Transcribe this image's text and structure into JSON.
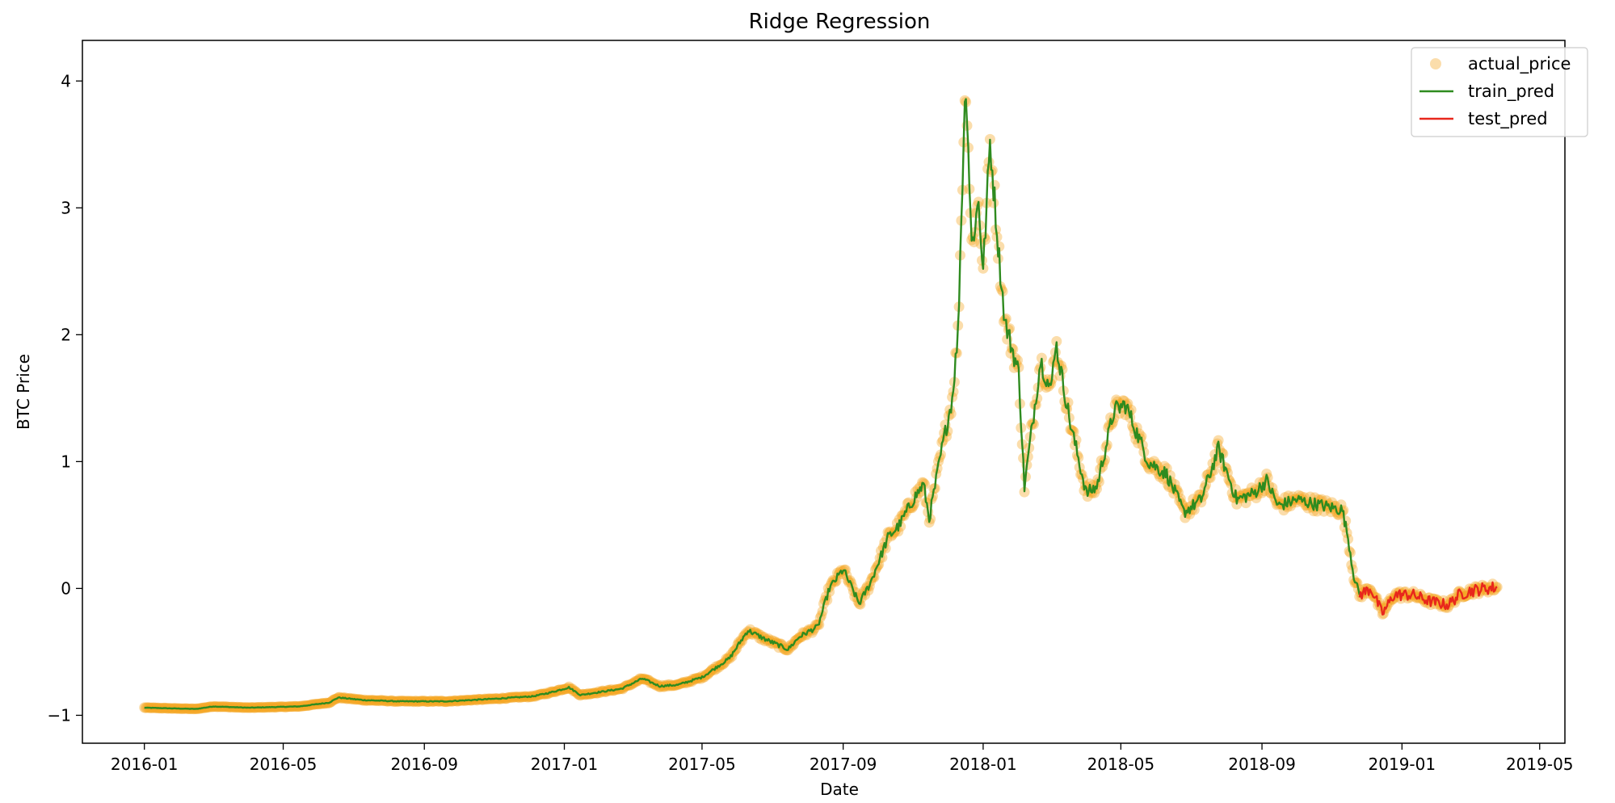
{
  "chart_data": {
    "type": "line",
    "title": "Ridge Regression",
    "xlabel": "Date",
    "ylabel": "BTC Price",
    "x_ticks": [
      "2016-01",
      "2016-05",
      "2016-09",
      "2017-01",
      "2017-05",
      "2017-09",
      "2018-01",
      "2018-05",
      "2018-09",
      "2019-01",
      "2019-05"
    ],
    "y_ticks": [
      -1,
      0,
      1,
      2,
      3,
      4
    ],
    "y_tick_labels": [
      "−1",
      "0",
      "1",
      "2",
      "3",
      "4"
    ],
    "xlim": [
      "2015-11-08",
      "2019-05-23"
    ],
    "ylim": [
      -1.22,
      4.32
    ],
    "grid": false,
    "legend_position": "top-right",
    "colors": {
      "actual_price": "#f5a623",
      "train_pred": "#2e8b1f",
      "test_pred": "#e8271c"
    },
    "series": [
      {
        "name": "actual_price",
        "kind": "scatter",
        "anchors": [
          [
            "2016-01-01",
            -0.94
          ],
          [
            "2016-02-15",
            -0.95
          ],
          [
            "2016-03-01",
            -0.93
          ],
          [
            "2016-04-01",
            -0.94
          ],
          [
            "2016-05-15",
            -0.93
          ],
          [
            "2016-06-10",
            -0.9
          ],
          [
            "2016-06-18",
            -0.86
          ],
          [
            "2016-07-10",
            -0.88
          ],
          [
            "2016-08-10",
            -0.89
          ],
          [
            "2016-09-20",
            -0.89
          ],
          [
            "2016-11-01",
            -0.87
          ],
          [
            "2016-12-05",
            -0.85
          ],
          [
            "2016-12-20",
            -0.82
          ],
          [
            "2017-01-05",
            -0.78
          ],
          [
            "2017-01-15",
            -0.84
          ],
          [
            "2017-02-20",
            -0.79
          ],
          [
            "2017-03-10",
            -0.71
          ],
          [
            "2017-03-25",
            -0.77
          ],
          [
            "2017-04-10",
            -0.76
          ],
          [
            "2017-05-01",
            -0.7
          ],
          [
            "2017-05-25",
            -0.55
          ],
          [
            "2017-06-10",
            -0.33
          ],
          [
            "2017-06-25",
            -0.4
          ],
          [
            "2017-07-15",
            -0.48
          ],
          [
            "2017-07-25",
            -0.38
          ],
          [
            "2017-08-10",
            -0.3
          ],
          [
            "2017-08-20",
            0.0
          ],
          [
            "2017-09-01",
            0.15
          ],
          [
            "2017-09-15",
            -0.12
          ],
          [
            "2017-09-25",
            0.05
          ],
          [
            "2017-10-10",
            0.4
          ],
          [
            "2017-10-20",
            0.5
          ],
          [
            "2017-11-01",
            0.7
          ],
          [
            "2017-11-10",
            0.82
          ],
          [
            "2017-11-15",
            0.55
          ],
          [
            "2017-11-25",
            1.05
          ],
          [
            "2017-12-05",
            1.5
          ],
          [
            "2017-12-10",
            2.0
          ],
          [
            "2017-12-15",
            3.55
          ],
          [
            "2017-12-17",
            4.0
          ],
          [
            "2017-12-22",
            2.7
          ],
          [
            "2017-12-28",
            3.05
          ],
          [
            "2018-01-01",
            2.5
          ],
          [
            "2018-01-07",
            3.52
          ],
          [
            "2018-01-15",
            2.6
          ],
          [
            "2018-01-20",
            2.1
          ],
          [
            "2018-02-01",
            1.7
          ],
          [
            "2018-02-06",
            0.8
          ],
          [
            "2018-02-20",
            1.8
          ],
          [
            "2018-03-01",
            1.55
          ],
          [
            "2018-03-05",
            1.95
          ],
          [
            "2018-03-18",
            1.3
          ],
          [
            "2018-04-01",
            0.75
          ],
          [
            "2018-04-10",
            0.8
          ],
          [
            "2018-04-25",
            1.4
          ],
          [
            "2018-05-05",
            1.45
          ],
          [
            "2018-05-25",
            1.0
          ],
          [
            "2018-06-10",
            0.9
          ],
          [
            "2018-06-25",
            0.6
          ],
          [
            "2018-07-10",
            0.7
          ],
          [
            "2018-07-25",
            1.1
          ],
          [
            "2018-08-10",
            0.7
          ],
          [
            "2018-08-25",
            0.75
          ],
          [
            "2018-09-05",
            0.85
          ],
          [
            "2018-09-15",
            0.65
          ],
          [
            "2018-10-01",
            0.7
          ],
          [
            "2018-10-20",
            0.66
          ],
          [
            "2018-11-10",
            0.62
          ],
          [
            "2018-11-15",
            0.4
          ],
          [
            "2018-11-20",
            0.1
          ],
          [
            "2018-11-25",
            -0.05
          ],
          [
            "2018-12-05",
            0.0
          ],
          [
            "2018-12-15",
            -0.2
          ],
          [
            "2018-12-25",
            -0.05
          ],
          [
            "2019-01-10",
            -0.05
          ],
          [
            "2019-01-25",
            -0.1
          ],
          [
            "2019-02-10",
            -0.13
          ],
          [
            "2019-02-20",
            -0.05
          ],
          [
            "2019-03-01",
            -0.02
          ],
          [
            "2019-03-15",
            0.0
          ],
          [
            "2019-03-25",
            0.01
          ]
        ]
      },
      {
        "name": "train_pred",
        "kind": "line",
        "anchors": [
          [
            "2016-01-01",
            -0.94
          ],
          [
            "2016-02-15",
            -0.95
          ],
          [
            "2016-03-01",
            -0.93
          ],
          [
            "2016-04-01",
            -0.94
          ],
          [
            "2016-05-15",
            -0.93
          ],
          [
            "2016-06-10",
            -0.9
          ],
          [
            "2016-06-18",
            -0.86
          ],
          [
            "2016-07-10",
            -0.88
          ],
          [
            "2016-08-10",
            -0.89
          ],
          [
            "2016-09-20",
            -0.89
          ],
          [
            "2016-11-01",
            -0.87
          ],
          [
            "2016-12-05",
            -0.85
          ],
          [
            "2016-12-20",
            -0.82
          ],
          [
            "2017-01-05",
            -0.78
          ],
          [
            "2017-01-15",
            -0.84
          ],
          [
            "2017-02-20",
            -0.79
          ],
          [
            "2017-03-10",
            -0.71
          ],
          [
            "2017-03-25",
            -0.77
          ],
          [
            "2017-04-10",
            -0.76
          ],
          [
            "2017-05-01",
            -0.7
          ],
          [
            "2017-05-25",
            -0.55
          ],
          [
            "2017-06-10",
            -0.33
          ],
          [
            "2017-06-25",
            -0.4
          ],
          [
            "2017-07-15",
            -0.48
          ],
          [
            "2017-07-25",
            -0.38
          ],
          [
            "2017-08-10",
            -0.3
          ],
          [
            "2017-08-20",
            0.0
          ],
          [
            "2017-09-01",
            0.15
          ],
          [
            "2017-09-15",
            -0.12
          ],
          [
            "2017-09-25",
            0.05
          ],
          [
            "2017-10-10",
            0.4
          ],
          [
            "2017-10-20",
            0.5
          ],
          [
            "2017-11-01",
            0.7
          ],
          [
            "2017-11-10",
            0.82
          ],
          [
            "2017-11-15",
            0.55
          ],
          [
            "2017-11-25",
            1.05
          ],
          [
            "2017-12-05",
            1.5
          ],
          [
            "2017-12-10",
            2.0
          ],
          [
            "2017-12-15",
            3.55
          ],
          [
            "2017-12-17",
            4.0
          ],
          [
            "2017-12-22",
            2.7
          ],
          [
            "2017-12-28",
            3.05
          ],
          [
            "2018-01-01",
            2.5
          ],
          [
            "2018-01-07",
            3.52
          ],
          [
            "2018-01-15",
            2.6
          ],
          [
            "2018-01-20",
            2.1
          ],
          [
            "2018-02-01",
            1.7
          ],
          [
            "2018-02-06",
            0.8
          ],
          [
            "2018-02-20",
            1.8
          ],
          [
            "2018-03-01",
            1.55
          ],
          [
            "2018-03-05",
            1.95
          ],
          [
            "2018-03-18",
            1.3
          ],
          [
            "2018-04-01",
            0.75
          ],
          [
            "2018-04-10",
            0.8
          ],
          [
            "2018-04-25",
            1.4
          ],
          [
            "2018-05-05",
            1.45
          ],
          [
            "2018-05-25",
            1.0
          ],
          [
            "2018-06-10",
            0.9
          ],
          [
            "2018-06-25",
            0.6
          ],
          [
            "2018-07-10",
            0.7
          ],
          [
            "2018-07-25",
            1.1
          ],
          [
            "2018-08-10",
            0.7
          ],
          [
            "2018-08-25",
            0.75
          ],
          [
            "2018-09-05",
            0.85
          ],
          [
            "2018-09-15",
            0.65
          ],
          [
            "2018-10-01",
            0.7
          ],
          [
            "2018-10-20",
            0.66
          ],
          [
            "2018-11-10",
            0.62
          ],
          [
            "2018-11-15",
            0.4
          ],
          [
            "2018-11-20",
            0.1
          ],
          [
            "2018-11-25",
            -0.05
          ]
        ]
      },
      {
        "name": "test_pred",
        "kind": "line",
        "anchors": [
          [
            "2018-11-25",
            -0.05
          ],
          [
            "2018-12-05",
            0.0
          ],
          [
            "2018-12-15",
            -0.2
          ],
          [
            "2018-12-25",
            -0.05
          ],
          [
            "2019-01-10",
            -0.05
          ],
          [
            "2019-01-25",
            -0.1
          ],
          [
            "2019-02-10",
            -0.13
          ],
          [
            "2019-02-20",
            -0.05
          ],
          [
            "2019-03-01",
            -0.02
          ],
          [
            "2019-03-15",
            0.0
          ],
          [
            "2019-03-25",
            0.01
          ]
        ]
      }
    ]
  }
}
